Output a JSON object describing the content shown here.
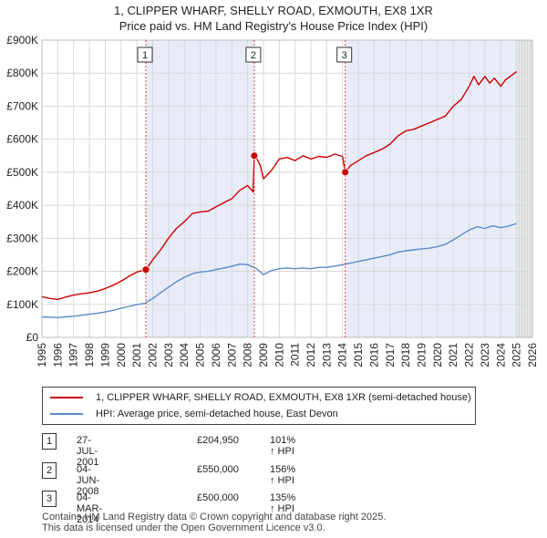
{
  "header": {
    "title_line1": "1, CLIPPER WHARF, SHELLY ROAD, EXMOUTH, EX8 1XR",
    "title_line2": "Price paid vs. HM Land Registry's House Price Index (HPI)"
  },
  "legend": {
    "property_label": "1, CLIPPER WHARF, SHELLY ROAD, EXMOUTH, EX8 1XR (semi-detached house)",
    "hpi_label": "HPI: Average price, semi-detached house, East Devon"
  },
  "colors": {
    "property_line": "#cc0000",
    "hpi_line": "#5b8ac9",
    "sale_shade": "#e8ecf8",
    "future_shade": "#e6e6e6",
    "grid": "#d8d8d8",
    "marker_line": "#dd4444"
  },
  "transactions": [
    {
      "num": "1",
      "date": "27-JUL-2001",
      "price": "£204,950",
      "hpi": "101% ↑ HPI"
    },
    {
      "num": "2",
      "date": "04-JUN-2008",
      "price": "£550,000",
      "hpi": "156% ↑ HPI"
    },
    {
      "num": "3",
      "date": "04-MAR-2014",
      "price": "£500,000",
      "hpi": "135% ↑ HPI"
    }
  ],
  "footer": {
    "line1": "Contains HM Land Registry data © Crown copyright and database right 2025.",
    "line2": "This data is licensed under the Open Government Licence v3.0."
  },
  "chart_data": {
    "type": "line",
    "title": "1, CLIPPER WHARF, SHELLY ROAD, EXMOUTH, EX8 1XR — Price paid vs. HM Land Registry's House Price Index (HPI)",
    "xlabel": "",
    "ylabel": "",
    "xlim": [
      1995,
      2026
    ],
    "ylim": [
      0,
      900000
    ],
    "grid": true,
    "legend_position": "below",
    "x_ticks": [
      1995,
      1996,
      1997,
      1998,
      1999,
      2000,
      2001,
      2002,
      2003,
      2004,
      2005,
      2006,
      2007,
      2008,
      2009,
      2010,
      2011,
      2012,
      2013,
      2014,
      2015,
      2016,
      2017,
      2018,
      2019,
      2020,
      2021,
      2022,
      2023,
      2024,
      2025,
      2026
    ],
    "y_ticks": [
      {
        "value": 0,
        "label": "£0"
      },
      {
        "value": 100000,
        "label": "£100K"
      },
      {
        "value": 200000,
        "label": "£200K"
      },
      {
        "value": 300000,
        "label": "£300K"
      },
      {
        "value": 400000,
        "label": "£400K"
      },
      {
        "value": 500000,
        "label": "£500K"
      },
      {
        "value": 600000,
        "label": "£600K"
      },
      {
        "value": 700000,
        "label": "£700K"
      },
      {
        "value": 800000,
        "label": "£800K"
      },
      {
        "value": 900000,
        "label": "£900K"
      }
    ],
    "future_start": 2025.0,
    "sales": [
      {
        "label": "1",
        "x": 2001.57,
        "y": 204950
      },
      {
        "label": "2",
        "x": 2008.42,
        "y": 550000
      },
      {
        "label": "3",
        "x": 2014.17,
        "y": 500000
      }
    ],
    "series": [
      {
        "name": "1, CLIPPER WHARF, SHELLY ROAD, EXMOUTH, EX8 1XR (semi-detached house)",
        "x": [
          1995.0,
          1995.5,
          1996.0,
          1996.5,
          1997.0,
          1997.5,
          1998.0,
          1998.5,
          1999.0,
          1999.5,
          2000.0,
          2000.5,
          2001.0,
          2001.57,
          2002.0,
          2002.5,
          2003.0,
          2003.5,
          2004.0,
          2004.5,
          2005.0,
          2005.5,
          2006.0,
          2006.5,
          2007.0,
          2007.5,
          2008.0,
          2008.35,
          2008.42,
          2008.6,
          2008.8,
          2009.0,
          2009.5,
          2010.0,
          2010.5,
          2011.0,
          2011.5,
          2012.0,
          2012.5,
          2013.0,
          2013.5,
          2014.0,
          2014.17,
          2014.5,
          2015.0,
          2015.5,
          2016.0,
          2016.5,
          2017.0,
          2017.5,
          2018.0,
          2018.5,
          2019.0,
          2019.5,
          2020.0,
          2020.5,
          2021.0,
          2021.5,
          2022.0,
          2022.3,
          2022.6,
          2023.0,
          2023.3,
          2023.6,
          2024.0,
          2024.3,
          2024.6,
          2025.0
        ],
        "values": [
          123000,
          118000,
          115000,
          122000,
          128000,
          132000,
          135000,
          140000,
          148000,
          158000,
          170000,
          185000,
          198000,
          204950,
          235000,
          265000,
          300000,
          330000,
          350000,
          375000,
          380000,
          382000,
          395000,
          408000,
          420000,
          445000,
          460000,
          440000,
          550000,
          540000,
          520000,
          480000,
          505000,
          540000,
          545000,
          535000,
          550000,
          540000,
          548000,
          545000,
          555000,
          548000,
          500000,
          520000,
          535000,
          550000,
          560000,
          570000,
          585000,
          610000,
          625000,
          630000,
          640000,
          650000,
          660000,
          670000,
          700000,
          720000,
          760000,
          790000,
          765000,
          790000,
          770000,
          785000,
          760000,
          780000,
          790000,
          805000
        ]
      },
      {
        "name": "HPI: Average price, semi-detached house, East Devon",
        "x": [
          1995.0,
          1995.5,
          1996.0,
          1996.5,
          1997.0,
          1997.5,
          1998.0,
          1998.5,
          1999.0,
          1999.5,
          2000.0,
          2000.5,
          2001.0,
          2001.5,
          2002.0,
          2002.5,
          2003.0,
          2003.5,
          2004.0,
          2004.5,
          2005.0,
          2005.5,
          2006.0,
          2006.5,
          2007.0,
          2007.5,
          2008.0,
          2008.5,
          2009.0,
          2009.5,
          2010.0,
          2010.5,
          2011.0,
          2011.5,
          2012.0,
          2012.5,
          2013.0,
          2013.5,
          2014.0,
          2014.5,
          2015.0,
          2015.5,
          2016.0,
          2016.5,
          2017.0,
          2017.5,
          2018.0,
          2018.5,
          2019.0,
          2019.5,
          2020.0,
          2020.5,
          2021.0,
          2021.5,
          2022.0,
          2022.5,
          2023.0,
          2023.5,
          2024.0,
          2024.5,
          2025.0
        ],
        "values": [
          62000,
          61000,
          60000,
          62000,
          64000,
          67000,
          70000,
          73000,
          77000,
          82000,
          88000,
          94000,
          99000,
          103000,
          118000,
          135000,
          152000,
          168000,
          182000,
          193000,
          198000,
          200000,
          205000,
          210000,
          215000,
          222000,
          220000,
          210000,
          190000,
          202000,
          208000,
          210000,
          208000,
          210000,
          208000,
          212000,
          212000,
          216000,
          220000,
          225000,
          230000,
          235000,
          240000,
          245000,
          250000,
          258000,
          262000,
          265000,
          268000,
          270000,
          275000,
          282000,
          295000,
          310000,
          325000,
          335000,
          330000,
          338000,
          332000,
          337000,
          345000
        ]
      }
    ]
  }
}
